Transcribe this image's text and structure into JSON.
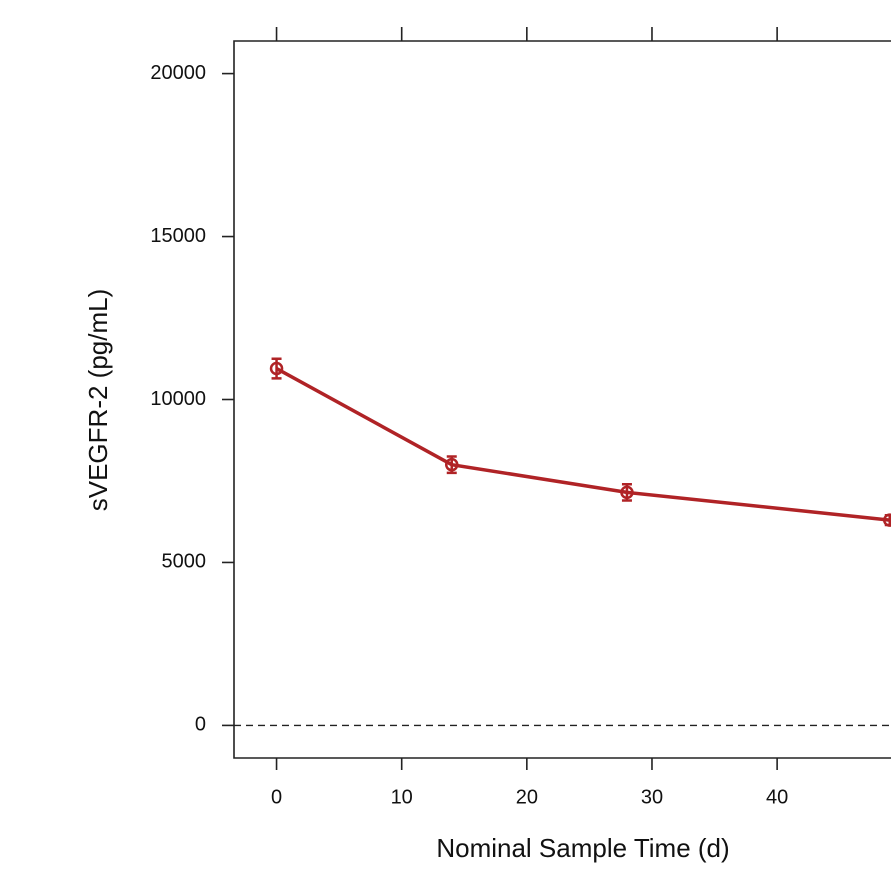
{
  "chart_data": {
    "type": "line",
    "xlabel": "Nominal Sample Time (d)",
    "ylabel": "sVEGFR-2 (pg/mL)",
    "x": [
      0,
      14,
      28,
      49
    ],
    "series": [
      {
        "color": "#b02326",
        "values": [
          10950,
          8000,
          7150,
          6300
        ],
        "errors": [
          300,
          250,
          250,
          150
        ]
      }
    ],
    "xlim": [
      -3.4,
      49.1
    ],
    "xticks": [
      0,
      10,
      20,
      30,
      40
    ],
    "ylim": [
      -1000,
      21000
    ],
    "yticks": [
      0,
      5000,
      10000,
      15000,
      20000
    ],
    "hline": 0
  }
}
